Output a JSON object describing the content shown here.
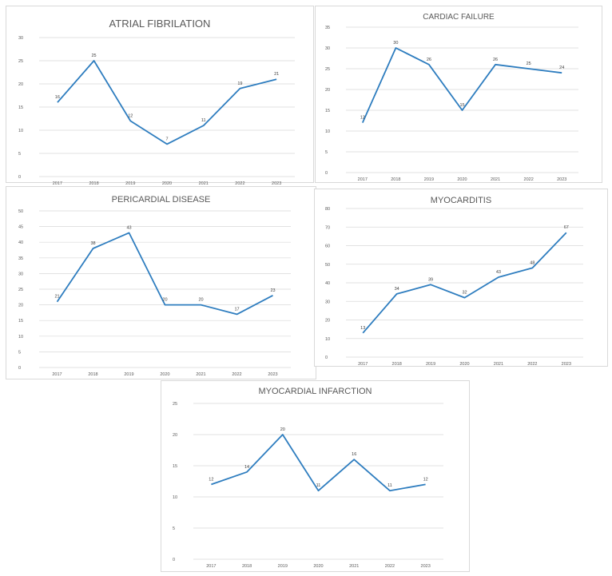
{
  "chart_data": [
    {
      "type": "line",
      "title": "ATRIAL FIBRILATION",
      "categories": [
        "2017",
        "2018",
        "2019",
        "2020",
        "2021",
        "2022",
        "2023"
      ],
      "values": [
        16,
        25,
        12,
        7,
        11,
        19,
        21
      ],
      "ylim": [
        0,
        30
      ],
      "yticks": [
        0,
        5,
        10,
        15,
        20,
        25,
        30
      ],
      "xlabel": "",
      "ylabel": "",
      "grid": true,
      "legend": "none",
      "color": "#2e7dbf"
    },
    {
      "type": "line",
      "title": "CARDIAC FAILURE",
      "categories": [
        "2017",
        "2018",
        "2019",
        "2020",
        "2021",
        "2022",
        "2023"
      ],
      "values": [
        12,
        30,
        26,
        15,
        26,
        25,
        24
      ],
      "ylim": [
        0,
        35
      ],
      "yticks": [
        0,
        5,
        10,
        15,
        20,
        25,
        30,
        35
      ],
      "xlabel": "",
      "ylabel": "",
      "grid": true,
      "legend": "none",
      "color": "#2e7dbf"
    },
    {
      "type": "line",
      "title": "PERICARDIAL DISEASE",
      "categories": [
        "2017",
        "2018",
        "2019",
        "2020",
        "2021",
        "2022",
        "2023"
      ],
      "values": [
        21,
        38,
        43,
        20,
        20,
        17,
        23
      ],
      "ylim": [
        0,
        50
      ],
      "yticks": [
        0,
        5,
        10,
        15,
        20,
        25,
        30,
        35,
        40,
        45,
        50
      ],
      "xlabel": "",
      "ylabel": "",
      "grid": true,
      "legend": "none",
      "color": "#2e7dbf"
    },
    {
      "type": "line",
      "title": "MYOCARDITIS",
      "categories": [
        "2017",
        "2018",
        "2019",
        "2020",
        "2021",
        "2022",
        "2023"
      ],
      "values": [
        13,
        34,
        39,
        32,
        43,
        48,
        67
      ],
      "ylim": [
        0,
        80
      ],
      "yticks": [
        0,
        10,
        20,
        30,
        40,
        50,
        60,
        70,
        80
      ],
      "xlabel": "",
      "ylabel": "",
      "grid": true,
      "legend": "none",
      "color": "#2e7dbf"
    },
    {
      "type": "line",
      "title": "MYOCARDIAL INFARCTION",
      "categories": [
        "2017",
        "2018",
        "2019",
        "2020",
        "2021",
        "2022",
        "2023"
      ],
      "values": [
        12,
        14,
        20,
        11,
        16,
        11,
        12
      ],
      "ylim": [
        0,
        25
      ],
      "yticks": [
        0,
        5,
        10,
        15,
        20,
        25
      ],
      "xlabel": "",
      "ylabel": "",
      "grid": true,
      "legend": "none",
      "color": "#2e7dbf"
    }
  ]
}
